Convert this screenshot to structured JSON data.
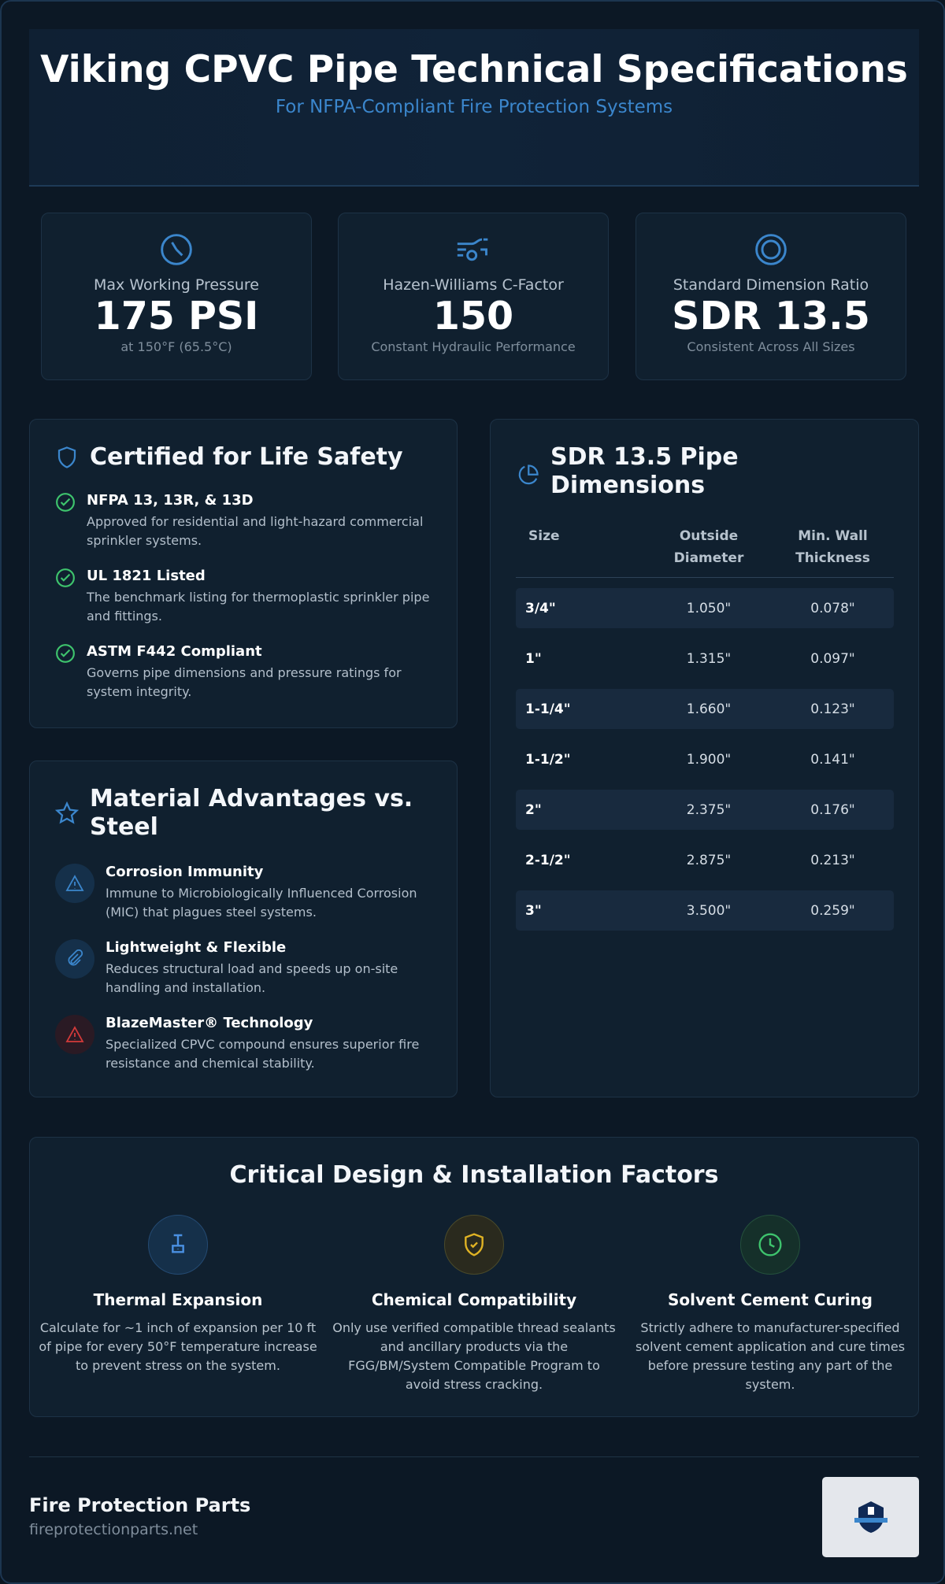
{
  "header": {
    "title": "Viking CPVC Pipe Technical Specifications",
    "subtitle": "For NFPA-Compliant Fire Protection Systems"
  },
  "stats": [
    {
      "label": "Max Working Pressure",
      "value": "175 PSI",
      "note": "at 150°F (65.5°C)"
    },
    {
      "label": "Hazen-Williams C-Factor",
      "value": "150",
      "note": "Constant Hydraulic Performance"
    },
    {
      "label": "Standard Dimension Ratio",
      "value": "SDR 13.5",
      "note": "Consistent Across All Sizes"
    }
  ],
  "certifications": {
    "title": "Certified for Life Safety",
    "items": [
      {
        "title": "NFPA 13, 13R, & 13D",
        "text": "Approved for residential and light-hazard commercial sprinkler systems."
      },
      {
        "title": "UL 1821 Listed",
        "text": "The benchmark listing for thermoplastic sprinkler pipe and fittings."
      },
      {
        "title": "ASTM F442 Compliant",
        "text": "Governs pipe dimensions and pressure ratings for system integrity."
      }
    ]
  },
  "advantages": {
    "title": "Material Advantages vs. Steel",
    "items": [
      {
        "title": "Corrosion Immunity",
        "text": "Immune to Microbiologically Influenced Corrosion (MIC) that plagues steel systems."
      },
      {
        "title": "Lightweight & Flexible",
        "text": "Reduces structural load and speeds up on-site handling and installation."
      },
      {
        "title": "BlazeMaster® Technology",
        "text": "Specialized CPVC compound ensures superior fire resistance and chemical stability."
      }
    ]
  },
  "dimensions": {
    "title": "SDR 13.5 Pipe Dimensions",
    "columns": [
      "Size",
      "Outside Diameter",
      "Min. Wall Thickness"
    ],
    "rows": [
      [
        "3/4\"",
        "1.050\"",
        "0.078\""
      ],
      [
        "1\"",
        "1.315\"",
        "0.097\""
      ],
      [
        "1-1/4\"",
        "1.660\"",
        "0.123\""
      ],
      [
        "1-1/2\"",
        "1.900\"",
        "0.141\""
      ],
      [
        "2\"",
        "2.375\"",
        "0.176\""
      ],
      [
        "2-1/2\"",
        "2.875\"",
        "0.213\""
      ],
      [
        "3\"",
        "3.500\"",
        "0.259\""
      ]
    ]
  },
  "factors": {
    "title": "Critical Design & Installation Factors",
    "items": [
      {
        "title": "Thermal Expansion",
        "text": "Calculate for ~1 inch of expansion per 10 ft of pipe for every 50°F temperature increase to prevent stress on the system."
      },
      {
        "title": "Chemical Compatibility",
        "text": "Only use verified compatible thread sealants and ancillary products via the FGG/BM/System Compatible Program to avoid stress cracking."
      },
      {
        "title": "Solvent Cement Curing",
        "text": "Strictly adhere to manufacturer-specified solvent cement application and cure times before pressure testing any part of the system."
      }
    ]
  },
  "footer": {
    "company": "Fire Protection Parts",
    "url": "fireprotectionparts.net"
  }
}
